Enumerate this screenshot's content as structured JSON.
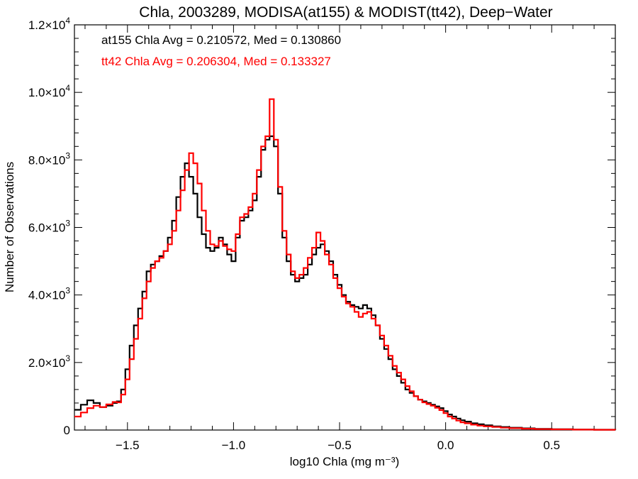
{
  "chart_data": {
    "type": "line",
    "title": "Chla, 2003289, MODISA(at155) & MODIST(tt42), Deep−Water",
    "xlabel": "log10 Chla (mg m⁻³)",
    "ylabel": "Number of Observations",
    "xlim": [
      -1.75,
      0.8
    ],
    "ylim": [
      0,
      12000
    ],
    "x_ticks": [
      {
        "value": -1.5,
        "label": "−1.5"
      },
      {
        "value": -1.0,
        "label": "−1.0"
      },
      {
        "value": -0.5,
        "label": "−0.5"
      },
      {
        "value": 0.0,
        "label": "0.0"
      },
      {
        "value": 0.5,
        "label": "0.5"
      }
    ],
    "y_ticks": [
      {
        "value": 0,
        "mant": "0",
        "exp": ""
      },
      {
        "value": 2000,
        "mant": "2.0×10",
        "exp": "3"
      },
      {
        "value": 4000,
        "mant": "4.0×10",
        "exp": "3"
      },
      {
        "value": 6000,
        "mant": "6.0×10",
        "exp": "3"
      },
      {
        "value": 8000,
        "mant": "8.0×10",
        "exp": "3"
      },
      {
        "value": 10000,
        "mant": "1.0×10",
        "exp": "4"
      },
      {
        "value": 12000,
        "mant": "1.2×10",
        "exp": "4"
      }
    ],
    "annotations": [
      {
        "text": "at155 Chla Avg = 0.210572, Med = 0.130860",
        "color": "#000000"
      },
      {
        "text": "tt42 Chla Avg = 0.206304, Med = 0.133327",
        "color": "#ff0000"
      }
    ],
    "series": [
      {
        "color": "#000000",
        "points": [
          [
            -1.75,
            600
          ],
          [
            -1.72,
            750
          ],
          [
            -1.69,
            880
          ],
          [
            -1.66,
            800
          ],
          [
            -1.63,
            680
          ],
          [
            -1.6,
            720
          ],
          [
            -1.57,
            800
          ],
          [
            -1.55,
            850
          ],
          [
            -1.53,
            1200
          ],
          [
            -1.51,
            1800
          ],
          [
            -1.49,
            2500
          ],
          [
            -1.47,
            3100
          ],
          [
            -1.45,
            3600
          ],
          [
            -1.43,
            4100
          ],
          [
            -1.41,
            4700
          ],
          [
            -1.39,
            4900
          ],
          [
            -1.37,
            5000
          ],
          [
            -1.35,
            5150
          ],
          [
            -1.33,
            5300
          ],
          [
            -1.31,
            5700
          ],
          [
            -1.29,
            6200
          ],
          [
            -1.27,
            6900
          ],
          [
            -1.25,
            7500
          ],
          [
            -1.23,
            7900
          ],
          [
            -1.21,
            7500
          ],
          [
            -1.19,
            7000
          ],
          [
            -1.17,
            6300
          ],
          [
            -1.15,
            5800
          ],
          [
            -1.13,
            5400
          ],
          [
            -1.11,
            5300
          ],
          [
            -1.09,
            5400
          ],
          [
            -1.07,
            5700
          ],
          [
            -1.05,
            5500
          ],
          [
            -1.03,
            5200
          ],
          [
            -1.01,
            5000
          ],
          [
            -0.99,
            5700
          ],
          [
            -0.97,
            6200
          ],
          [
            -0.95,
            6300
          ],
          [
            -0.93,
            6500
          ],
          [
            -0.91,
            6800
          ],
          [
            -0.89,
            7500
          ],
          [
            -0.87,
            8300
          ],
          [
            -0.85,
            8600
          ],
          [
            -0.83,
            8700
          ],
          [
            -0.81,
            8400
          ],
          [
            -0.79,
            7000
          ],
          [
            -0.77,
            5700
          ],
          [
            -0.75,
            5000
          ],
          [
            -0.73,
            4600
          ],
          [
            -0.71,
            4400
          ],
          [
            -0.69,
            4500
          ],
          [
            -0.67,
            4600
          ],
          [
            -0.65,
            4900
          ],
          [
            -0.63,
            5200
          ],
          [
            -0.61,
            5400
          ],
          [
            -0.59,
            5500
          ],
          [
            -0.57,
            5300
          ],
          [
            -0.55,
            5000
          ],
          [
            -0.53,
            4600
          ],
          [
            -0.51,
            4300
          ],
          [
            -0.49,
            4000
          ],
          [
            -0.47,
            3800
          ],
          [
            -0.45,
            3700
          ],
          [
            -0.43,
            3650
          ],
          [
            -0.41,
            3600
          ],
          [
            -0.39,
            3700
          ],
          [
            -0.37,
            3600
          ],
          [
            -0.35,
            3400
          ],
          [
            -0.33,
            3100
          ],
          [
            -0.31,
            2700
          ],
          [
            -0.29,
            2400
          ],
          [
            -0.27,
            2100
          ],
          [
            -0.25,
            1800
          ],
          [
            -0.23,
            1600
          ],
          [
            -0.21,
            1400
          ],
          [
            -0.19,
            1200
          ],
          [
            -0.17,
            1100
          ],
          [
            -0.15,
            1000
          ],
          [
            -0.13,
            900
          ],
          [
            -0.11,
            850
          ],
          [
            -0.09,
            800
          ],
          [
            -0.07,
            750
          ],
          [
            -0.05,
            700
          ],
          [
            -0.03,
            650
          ],
          [
            -0.01,
            560
          ],
          [
            0.01,
            460
          ],
          [
            0.03,
            400
          ],
          [
            0.05,
            340
          ],
          [
            0.07,
            290
          ],
          [
            0.09,
            250
          ],
          [
            0.12,
            200
          ],
          [
            0.15,
            170
          ],
          [
            0.18,
            140
          ],
          [
            0.22,
            110
          ],
          [
            0.26,
            90
          ],
          [
            0.3,
            70
          ],
          [
            0.36,
            50
          ],
          [
            0.42,
            35
          ],
          [
            0.5,
            25
          ],
          [
            0.6,
            15
          ],
          [
            0.7,
            10
          ],
          [
            0.8,
            8
          ]
        ]
      },
      {
        "color": "#ff0000",
        "points": [
          [
            -1.75,
            400
          ],
          [
            -1.72,
            520
          ],
          [
            -1.69,
            650
          ],
          [
            -1.66,
            720
          ],
          [
            -1.63,
            680
          ],
          [
            -1.6,
            760
          ],
          [
            -1.57,
            830
          ],
          [
            -1.55,
            820
          ],
          [
            -1.53,
            1050
          ],
          [
            -1.51,
            1500
          ],
          [
            -1.49,
            2100
          ],
          [
            -1.47,
            2700
          ],
          [
            -1.45,
            3300
          ],
          [
            -1.43,
            3900
          ],
          [
            -1.41,
            4400
          ],
          [
            -1.39,
            4800
          ],
          [
            -1.37,
            5000
          ],
          [
            -1.35,
            5100
          ],
          [
            -1.33,
            5300
          ],
          [
            -1.31,
            5500
          ],
          [
            -1.29,
            5900
          ],
          [
            -1.27,
            6500
          ],
          [
            -1.25,
            7100
          ],
          [
            -1.23,
            7700
          ],
          [
            -1.21,
            8200
          ],
          [
            -1.19,
            7900
          ],
          [
            -1.17,
            7300
          ],
          [
            -1.15,
            6500
          ],
          [
            -1.13,
            5900
          ],
          [
            -1.11,
            5500
          ],
          [
            -1.09,
            5450
          ],
          [
            -1.07,
            5600
          ],
          [
            -1.05,
            5450
          ],
          [
            -1.03,
            5350
          ],
          [
            -1.01,
            5300
          ],
          [
            -0.99,
            5800
          ],
          [
            -0.97,
            6300
          ],
          [
            -0.95,
            6400
          ],
          [
            -0.93,
            6600
          ],
          [
            -0.91,
            7000
          ],
          [
            -0.89,
            7700
          ],
          [
            -0.87,
            8400
          ],
          [
            -0.85,
            8700
          ],
          [
            -0.83,
            9800
          ],
          [
            -0.81,
            8600
          ],
          [
            -0.79,
            7200
          ],
          [
            -0.77,
            5900
          ],
          [
            -0.75,
            5200
          ],
          [
            -0.73,
            4700
          ],
          [
            -0.71,
            4500
          ],
          [
            -0.69,
            4600
          ],
          [
            -0.67,
            4800
          ],
          [
            -0.65,
            5100
          ],
          [
            -0.63,
            5400
          ],
          [
            -0.61,
            5850
          ],
          [
            -0.59,
            5600
          ],
          [
            -0.57,
            5200
          ],
          [
            -0.55,
            4900
          ],
          [
            -0.53,
            4500
          ],
          [
            -0.51,
            4200
          ],
          [
            -0.49,
            3950
          ],
          [
            -0.47,
            3750
          ],
          [
            -0.45,
            3650
          ],
          [
            -0.43,
            3500
          ],
          [
            -0.41,
            3350
          ],
          [
            -0.39,
            3450
          ],
          [
            -0.37,
            3500
          ],
          [
            -0.35,
            3300
          ],
          [
            -0.33,
            3100
          ],
          [
            -0.31,
            2800
          ],
          [
            -0.29,
            2500
          ],
          [
            -0.27,
            2200
          ],
          [
            -0.25,
            1900
          ],
          [
            -0.23,
            1700
          ],
          [
            -0.21,
            1500
          ],
          [
            -0.19,
            1300
          ],
          [
            -0.17,
            1150
          ],
          [
            -0.15,
            1000
          ],
          [
            -0.13,
            900
          ],
          [
            -0.11,
            820
          ],
          [
            -0.09,
            770
          ],
          [
            -0.07,
            720
          ],
          [
            -0.05,
            660
          ],
          [
            -0.03,
            590
          ],
          [
            -0.01,
            500
          ],
          [
            0.01,
            400
          ],
          [
            0.03,
            340
          ],
          [
            0.05,
            280
          ],
          [
            0.07,
            230
          ],
          [
            0.09,
            200
          ],
          [
            0.12,
            160
          ],
          [
            0.15,
            130
          ],
          [
            0.18,
            110
          ],
          [
            0.22,
            90
          ],
          [
            0.26,
            70
          ],
          [
            0.3,
            55
          ],
          [
            0.36,
            40
          ],
          [
            0.42,
            28
          ],
          [
            0.5,
            20
          ],
          [
            0.6,
            12
          ],
          [
            0.7,
            8
          ],
          [
            0.8,
            6
          ]
        ]
      }
    ]
  }
}
